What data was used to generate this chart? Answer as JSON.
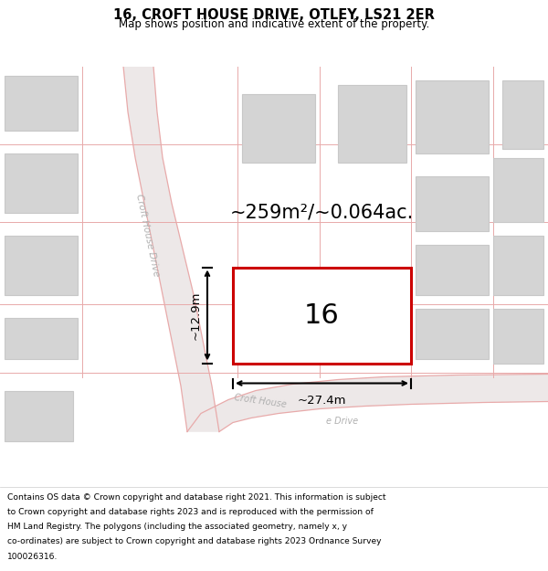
{
  "title": "16, CROFT HOUSE DRIVE, OTLEY, LS21 2ER",
  "subtitle": "Map shows position and indicative extent of the property.",
  "footer_lines": [
    "Contains OS data © Crown copyright and database right 2021. This information is subject",
    "to Crown copyright and database rights 2023 and is reproduced with the permission of",
    "HM Land Registry. The polygons (including the associated geometry, namely x, y",
    "co-ordinates) are subject to Crown copyright and database rights 2023 Ordnance Survey",
    "100026316."
  ],
  "map_bg": "#f2f0f0",
  "road_fill": "#ede8e8",
  "road_line_color": "#e8aaaa",
  "building_fill": "#d4d4d4",
  "building_edge": "#c8c8c8",
  "plot_color": "#cc0000",
  "area_text": "~259m²/~0.064ac.",
  "number_text": "16",
  "dim_width": "~27.4m",
  "dim_height": "~12.9m",
  "road_label_diagonal": "Croft House Drive",
  "road_label_curve1": "Croft House",
  "road_label_curve2": "e Drive"
}
